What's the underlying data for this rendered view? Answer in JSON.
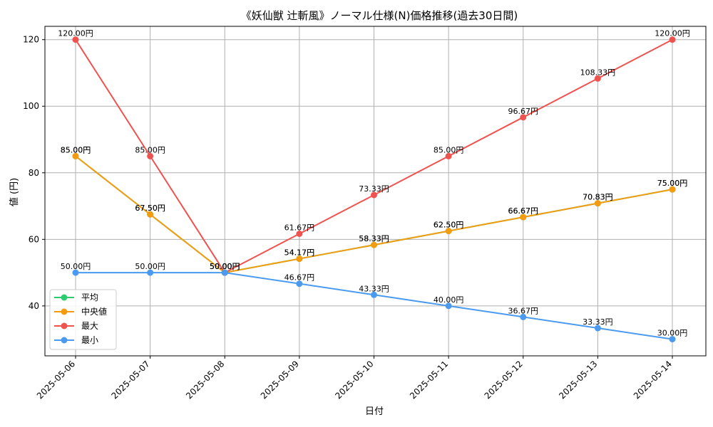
{
  "chart_data": {
    "type": "line",
    "title": "《妖仙獣 辻斬風》ノーマル仕様(N)価格推移(過去30日間)",
    "xlabel": "日付",
    "ylabel": "値 (円)",
    "categories": [
      "2025-05-06",
      "2025-05-07",
      "2025-05-08",
      "2025-05-09",
      "2025-05-10",
      "2025-05-11",
      "2025-05-12",
      "2025-05-13",
      "2025-05-14"
    ],
    "ylim": [
      25,
      124
    ],
    "yticks": [
      40,
      60,
      80,
      100,
      120
    ],
    "grid": true,
    "legend_position": "lower-left",
    "label_suffix": "円",
    "series": [
      {
        "name": "平均",
        "color": "#2ecc71",
        "values": [
          85.0,
          67.5,
          50.0,
          54.17,
          58.33,
          62.5,
          66.67,
          70.83,
          75.0
        ]
      },
      {
        "name": "中央値",
        "color": "#f39c12",
        "values": [
          85.0,
          67.5,
          50.0,
          54.17,
          58.33,
          62.5,
          66.67,
          70.83,
          75.0
        ]
      },
      {
        "name": "最大",
        "color": "#ef5350",
        "values": [
          120.0,
          85.0,
          50.0,
          61.67,
          73.33,
          85.0,
          96.67,
          108.33,
          120.0
        ]
      },
      {
        "name": "最小",
        "color": "#4a9bf0",
        "values": [
          50.0,
          50.0,
          50.0,
          46.67,
          43.33,
          40.0,
          36.67,
          33.33,
          30.0
        ]
      }
    ]
  }
}
